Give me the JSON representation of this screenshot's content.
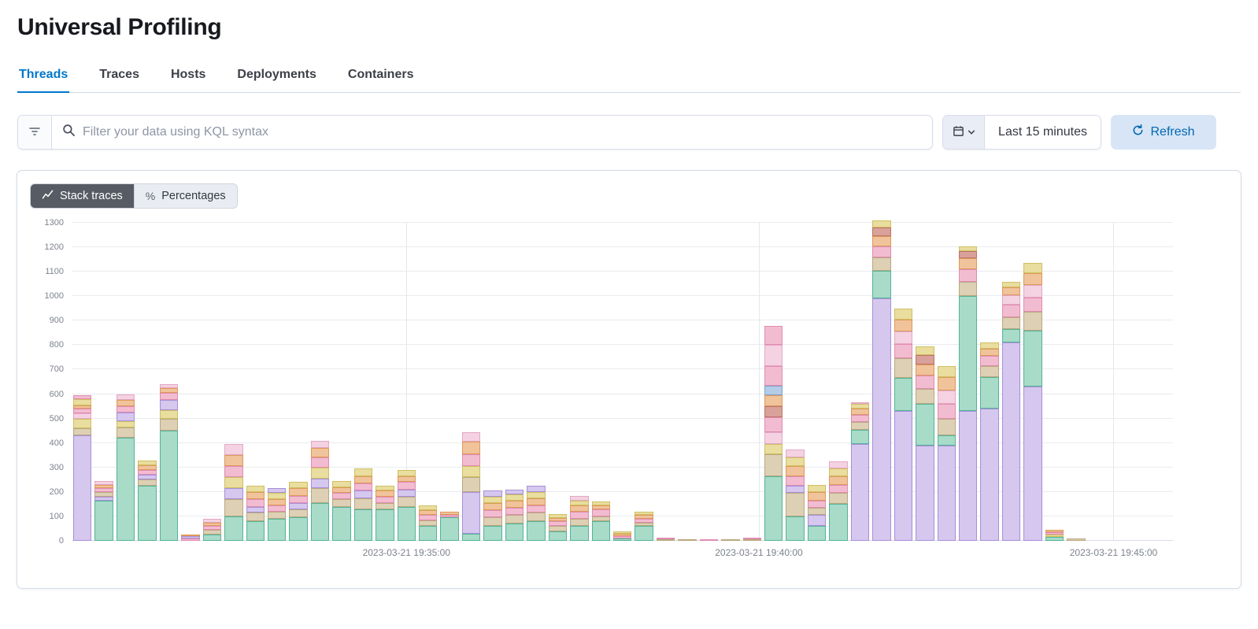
{
  "page": {
    "title": "Universal Profiling"
  },
  "tabs": [
    {
      "label": "Threads",
      "active": true
    },
    {
      "label": "Traces",
      "active": false
    },
    {
      "label": "Hosts",
      "active": false
    },
    {
      "label": "Deployments",
      "active": false
    },
    {
      "label": "Containers",
      "active": false
    }
  ],
  "filter_bar": {
    "search_placeholder": "Filter your data using KQL syntax",
    "time_range": "Last 15 minutes",
    "refresh_label": "Refresh"
  },
  "panel": {
    "toggle": [
      {
        "label": "Stack traces",
        "active": true,
        "icon": "line-chart-icon"
      },
      {
        "label": "Percentages",
        "active": false,
        "icon": "percent-icon"
      }
    ]
  },
  "icons": {
    "filter": "funnel-filter",
    "search": "magnifier",
    "calendar": "calendar",
    "chevron": "chevron-down",
    "refresh": "refresh-arrow",
    "percent_glyph": "%"
  },
  "colors": {
    "accent": "#0077cc",
    "refresh_bg": "#d7e5f6",
    "refresh_text": "#0068b1",
    "toggle_active_bg": "#575b63",
    "border": "#d3dae6"
  },
  "chart_data": {
    "type": "bar",
    "stacked": true,
    "title": "",
    "xlabel": "",
    "ylabel": "",
    "ylim": [
      0,
      1300
    ],
    "grid": true,
    "y_ticks": [
      0,
      100,
      200,
      300,
      400,
      500,
      600,
      700,
      800,
      900,
      1000,
      1100,
      1200,
      1300
    ],
    "x_ticks": [
      {
        "label": "2023-03-21 19:35:00",
        "pos": 0.304
      },
      {
        "label": "2023-03-21 19:40:00",
        "pos": 0.624
      },
      {
        "label": "2023-03-21 19:45:00",
        "pos": 0.946
      }
    ],
    "palette": {
      "p": {
        "name": "purple",
        "fill": "#d5c7ee",
        "stroke": "#a88fd8"
      },
      "t": {
        "name": "teal",
        "fill": "#a8dbc8",
        "stroke": "#54b399"
      },
      "n": {
        "name": "tan",
        "fill": "#ddd0b5",
        "stroke": "#b9a87e"
      },
      "k": {
        "name": "pink",
        "fill": "#f2bcd0",
        "stroke": "#e08cb1"
      },
      "o": {
        "name": "orange",
        "fill": "#f0c39b",
        "stroke": "#dd9a5b"
      },
      "y": {
        "name": "yellow",
        "fill": "#e9dd9f",
        "stroke": "#cfc063"
      },
      "m": {
        "name": "mauve",
        "fill": "#f4d2e1",
        "stroke": "#e3a8c6"
      },
      "r": {
        "name": "red",
        "fill": "#d9a199",
        "stroke": "#bd7468"
      },
      "b": {
        "name": "blue",
        "fill": "#b5cce6",
        "stroke": "#7fa3cc"
      }
    },
    "bars": [
      [
        [
          "p",
          430
        ],
        [
          "n",
          30
        ],
        [
          "y",
          40
        ],
        [
          "m",
          20
        ],
        [
          "k",
          20
        ],
        [
          "o",
          15
        ],
        [
          "y",
          25
        ],
        [
          "k",
          15
        ]
      ],
      [
        [
          "t",
          165
        ],
        [
          "p",
          15
        ],
        [
          "n",
          20
        ],
        [
          "k",
          15
        ],
        [
          "o",
          15
        ],
        [
          "m",
          15
        ]
      ],
      [
        [
          "t",
          420
        ],
        [
          "n",
          45
        ],
        [
          "y",
          25
        ],
        [
          "p",
          35
        ],
        [
          "k",
          25
        ],
        [
          "o",
          25
        ],
        [
          "m",
          25
        ]
      ],
      [
        [
          "t",
          225
        ],
        [
          "n",
          25
        ],
        [
          "p",
          20
        ],
        [
          "k",
          20
        ],
        [
          "o",
          20
        ],
        [
          "y",
          20
        ]
      ],
      [
        [
          "t",
          450
        ],
        [
          "n",
          50
        ],
        [
          "y",
          35
        ],
        [
          "p",
          40
        ],
        [
          "k",
          30
        ],
        [
          "o",
          20
        ],
        [
          "m",
          15
        ]
      ],
      [
        [
          "k",
          10
        ],
        [
          "p",
          8
        ],
        [
          "o",
          7
        ]
      ],
      [
        [
          "t",
          25
        ],
        [
          "n",
          20
        ],
        [
          "k",
          15
        ],
        [
          "o",
          15
        ],
        [
          "m",
          15
        ]
      ],
      [
        [
          "t",
          100
        ],
        [
          "n",
          70
        ],
        [
          "p",
          45
        ],
        [
          "y",
          45
        ],
        [
          "k",
          45
        ],
        [
          "o",
          45
        ],
        [
          "m",
          45
        ]
      ],
      [
        [
          "t",
          80
        ],
        [
          "n",
          35
        ],
        [
          "p",
          25
        ],
        [
          "k",
          30
        ],
        [
          "o",
          30
        ],
        [
          "y",
          25
        ]
      ],
      [
        [
          "t",
          90
        ],
        [
          "n",
          30
        ],
        [
          "k",
          25
        ],
        [
          "o",
          25
        ],
        [
          "y",
          25
        ],
        [
          "p",
          20
        ]
      ],
      [
        [
          "t",
          95
        ],
        [
          "n",
          35
        ],
        [
          "p",
          25
        ],
        [
          "k",
          30
        ],
        [
          "o",
          30
        ],
        [
          "y",
          25
        ]
      ],
      [
        [
          "t",
          155
        ],
        [
          "n",
          60
        ],
        [
          "p",
          40
        ],
        [
          "y",
          45
        ],
        [
          "k",
          40
        ],
        [
          "o",
          40
        ],
        [
          "m",
          30
        ]
      ],
      [
        [
          "t",
          140
        ],
        [
          "n",
          30
        ],
        [
          "k",
          25
        ],
        [
          "o",
          25
        ],
        [
          "y",
          25
        ]
      ],
      [
        [
          "t",
          130
        ],
        [
          "n",
          45
        ],
        [
          "p",
          30
        ],
        [
          "k",
          30
        ],
        [
          "o",
          30
        ],
        [
          "y",
          30
        ]
      ],
      [
        [
          "t",
          130
        ],
        [
          "n",
          25
        ],
        [
          "k",
          25
        ],
        [
          "o",
          25
        ],
        [
          "y",
          20
        ]
      ],
      [
        [
          "t",
          140
        ],
        [
          "n",
          40
        ],
        [
          "p",
          30
        ],
        [
          "k",
          30
        ],
        [
          "o",
          25
        ],
        [
          "y",
          25
        ]
      ],
      [
        [
          "t",
          60
        ],
        [
          "n",
          25
        ],
        [
          "k",
          20
        ],
        [
          "o",
          20
        ],
        [
          "y",
          20
        ]
      ],
      [
        [
          "t",
          95
        ],
        [
          "k",
          10
        ],
        [
          "o",
          15
        ]
      ],
      [
        [
          "t",
          30
        ],
        [
          "p",
          170
        ],
        [
          "n",
          60
        ],
        [
          "y",
          45
        ],
        [
          "k",
          50
        ],
        [
          "o",
          50
        ],
        [
          "m",
          40
        ]
      ],
      [
        [
          "t",
          60
        ],
        [
          "n",
          35
        ],
        [
          "k",
          30
        ],
        [
          "o",
          30
        ],
        [
          "y",
          25
        ],
        [
          "p",
          25
        ]
      ],
      [
        [
          "t",
          70
        ],
        [
          "n",
          35
        ],
        [
          "k",
          30
        ],
        [
          "o",
          30
        ],
        [
          "y",
          25
        ],
        [
          "p",
          20
        ]
      ],
      [
        [
          "t",
          80
        ],
        [
          "n",
          35
        ],
        [
          "k",
          30
        ],
        [
          "o",
          30
        ],
        [
          "y",
          25
        ],
        [
          "p",
          25
        ]
      ],
      [
        [
          "t",
          40
        ],
        [
          "n",
          20
        ],
        [
          "k",
          20
        ],
        [
          "o",
          15
        ],
        [
          "y",
          15
        ]
      ],
      [
        [
          "t",
          60
        ],
        [
          "n",
          30
        ],
        [
          "k",
          30
        ],
        [
          "o",
          25
        ],
        [
          "y",
          20
        ],
        [
          "m",
          20
        ]
      ],
      [
        [
          "t",
          80
        ],
        [
          "n",
          20
        ],
        [
          "k",
          30
        ],
        [
          "o",
          15
        ],
        [
          "y",
          15
        ]
      ],
      [
        [
          "t",
          10
        ],
        [
          "k",
          10
        ],
        [
          "o",
          10
        ],
        [
          "y",
          10
        ]
      ],
      [
        [
          "t",
          60
        ],
        [
          "n",
          15
        ],
        [
          "k",
          15
        ],
        [
          "o",
          15
        ],
        [
          "y",
          15
        ]
      ],
      [
        [
          "n",
          5
        ],
        [
          "k",
          5
        ]
      ],
      [
        [
          "n",
          3
        ]
      ],
      [
        [
          "k",
          2
        ]
      ],
      [
        [
          "n",
          3
        ]
      ],
      [
        [
          "n",
          4
        ],
        [
          "k",
          4
        ]
      ],
      [
        [
          "t",
          265
        ],
        [
          "n",
          90
        ],
        [
          "y",
          40
        ],
        [
          "m",
          50
        ],
        [
          "k",
          60
        ],
        [
          "r",
          45
        ],
        [
          "o",
          45
        ],
        [
          "b",
          40
        ],
        [
          "k",
          80
        ],
        [
          "m",
          85
        ],
        [
          "k",
          80
        ]
      ],
      [
        [
          "t",
          100
        ],
        [
          "n",
          95
        ],
        [
          "p",
          30
        ],
        [
          "k",
          40
        ],
        [
          "o",
          40
        ],
        [
          "y",
          35
        ],
        [
          "m",
          35
        ]
      ],
      [
        [
          "t",
          60
        ],
        [
          "p",
          45
        ],
        [
          "n",
          30
        ],
        [
          "k",
          30
        ],
        [
          "o",
          35
        ],
        [
          "y",
          30
        ]
      ],
      [
        [
          "t",
          150
        ],
        [
          "n",
          45
        ],
        [
          "k",
          35
        ],
        [
          "o",
          35
        ],
        [
          "y",
          30
        ],
        [
          "m",
          30
        ]
      ],
      [
        [
          "p",
          395
        ],
        [
          "t",
          60
        ],
        [
          "n",
          30
        ],
        [
          "k",
          30
        ],
        [
          "o",
          25
        ],
        [
          "y",
          20
        ],
        [
          "m",
          5
        ]
      ],
      [
        [
          "p",
          990
        ],
        [
          "t",
          115
        ],
        [
          "n",
          55
        ],
        [
          "k",
          45
        ],
        [
          "o",
          40
        ],
        [
          "r",
          35
        ],
        [
          "y",
          30
        ]
      ],
      [
        [
          "p",
          530
        ],
        [
          "t",
          135
        ],
        [
          "n",
          80
        ],
        [
          "k",
          60
        ],
        [
          "m",
          50
        ],
        [
          "o",
          50
        ],
        [
          "y",
          45
        ]
      ],
      [
        [
          "p",
          390
        ],
        [
          "t",
          170
        ],
        [
          "n",
          60
        ],
        [
          "k",
          55
        ],
        [
          "o",
          45
        ],
        [
          "r",
          40
        ],
        [
          "y",
          35
        ]
      ],
      [
        [
          "p",
          390
        ],
        [
          "t",
          40
        ],
        [
          "n",
          70
        ],
        [
          "k",
          60
        ],
        [
          "m",
          55
        ],
        [
          "o",
          55
        ],
        [
          "y",
          45
        ]
      ],
      [
        [
          "p",
          530
        ],
        [
          "t",
          470
        ],
        [
          "n",
          60
        ],
        [
          "k",
          50
        ],
        [
          "o",
          45
        ],
        [
          "r",
          30
        ],
        [
          "y",
          20
        ]
      ],
      [
        [
          "p",
          540
        ],
        [
          "t",
          130
        ],
        [
          "n",
          45
        ],
        [
          "k",
          40
        ],
        [
          "o",
          30
        ],
        [
          "y",
          25
        ]
      ],
      [
        [
          "p",
          810
        ],
        [
          "t",
          55
        ],
        [
          "n",
          50
        ],
        [
          "k",
          50
        ],
        [
          "m",
          40
        ],
        [
          "o",
          30
        ],
        [
          "y",
          25
        ]
      ],
      [
        [
          "p",
          630
        ],
        [
          "t",
          230
        ],
        [
          "n",
          75
        ],
        [
          "k",
          60
        ],
        [
          "m",
          50
        ],
        [
          "o",
          50
        ],
        [
          "y",
          40
        ]
      ],
      [
        [
          "t",
          15
        ],
        [
          "y",
          10
        ],
        [
          "k",
          10
        ],
        [
          "o",
          10
        ]
      ],
      [
        [
          "n",
          10
        ]
      ],
      [],
      [],
      [],
      []
    ]
  }
}
